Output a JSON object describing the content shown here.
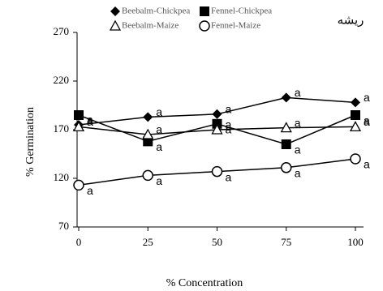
{
  "chart_data": {
    "type": "line",
    "title": "ريشه",
    "x_label": "% Concentration",
    "y_label": "% Germination",
    "x": [
      0,
      25,
      50,
      75,
      100
    ],
    "xlim": [
      0,
      100
    ],
    "xticks": [
      0,
      25,
      50,
      75,
      100
    ],
    "ylim": [
      70,
      270
    ],
    "yticks": [
      70,
      120,
      170,
      220,
      270
    ],
    "series": [
      {
        "name": "Beebalm-Chickpea",
        "color": "#000000",
        "marker": "diamond",
        "values": [
          175,
          183,
          186,
          203,
          198
        ],
        "labels": [
          "a",
          "a",
          "a",
          "a",
          "a"
        ]
      },
      {
        "name": "Fennel-Chickpea",
        "color": "#000000",
        "marker": "square",
        "values": [
          185,
          158,
          176,
          155,
          185
        ],
        "labels": [
          "a",
          "a",
          "a",
          "a",
          "a"
        ]
      },
      {
        "name": "Beebalm-Maize",
        "color": "#000000",
        "marker": "triangle",
        "values": [
          173,
          165,
          170,
          172,
          173
        ],
        "labels": [
          "a",
          "a",
          "a",
          "a",
          "a"
        ]
      },
      {
        "name": "Fennel-Maize",
        "color": "#000000",
        "marker": "circle",
        "values": [
          113,
          123,
          127,
          131,
          140
        ],
        "labels": [
          "a",
          "a",
          "a",
          "a",
          "a"
        ]
      }
    ]
  }
}
